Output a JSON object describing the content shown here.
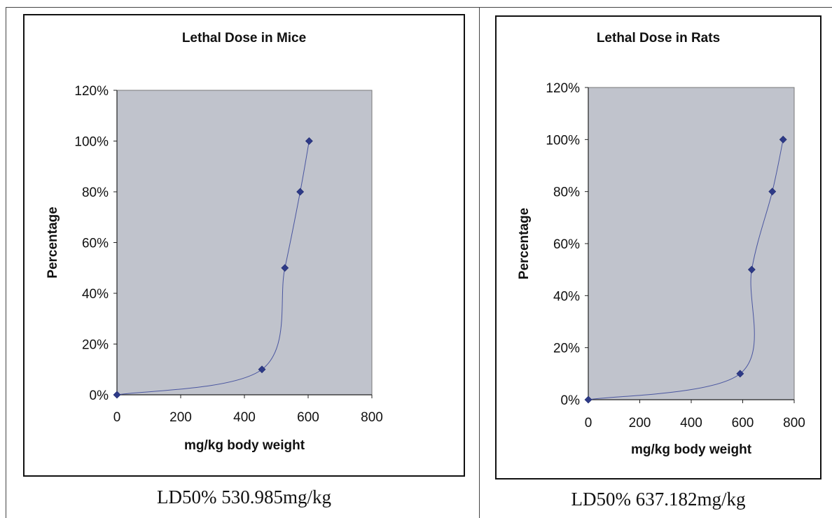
{
  "chart_data": [
    {
      "type": "scatter",
      "title": "Lethal Dose in Mice",
      "xlabel": "mg/kg body weight",
      "ylabel": "Percentage",
      "xlim": [
        0,
        800
      ],
      "ylim": [
        0,
        1.2
      ],
      "xticks": [
        "0",
        "200",
        "400",
        "600",
        "800"
      ],
      "yticks": [
        "0%",
        "20%",
        "40%",
        "60%",
        "80%",
        "100%",
        "120%"
      ],
      "series": [
        {
          "x": [
            0,
            455,
            527,
            575,
            603
          ],
          "y": [
            0,
            0.1,
            0.5,
            0.8,
            1.0
          ]
        }
      ],
      "smoothed_line": true,
      "plot_background": "#c0c3cc",
      "line_color": "#4a56a0",
      "marker_color": "#2e3a87",
      "grid": false,
      "caption": "LD50% 530.985mg/kg"
    },
    {
      "type": "scatter",
      "title": "Lethal Dose in Rats",
      "xlabel": "mg/kg body weight",
      "ylabel": "Percentage",
      "xlim": [
        0,
        800
      ],
      "ylim": [
        0,
        1.2
      ],
      "xticks": [
        "0",
        "200",
        "400",
        "600",
        "800"
      ],
      "yticks": [
        "0%",
        "20%",
        "40%",
        "60%",
        "80%",
        "100%",
        "120%"
      ],
      "series": [
        {
          "x": [
            0,
            590,
            635,
            715,
            757
          ],
          "y": [
            0,
            0.1,
            0.5,
            0.8,
            1.0
          ]
        }
      ],
      "smoothed_line": true,
      "plot_background": "#c0c3cc",
      "line_color": "#4a56a0",
      "marker_color": "#2e3a87",
      "grid": false,
      "caption": "LD50% 637.182mg/kg"
    }
  ]
}
